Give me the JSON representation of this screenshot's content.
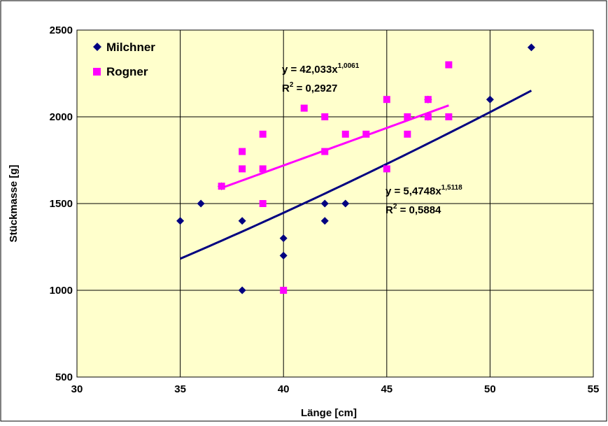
{
  "chart_data": {
    "type": "scatter",
    "xlabel": "Länge [cm]",
    "ylabel": "Stückmasse [g]",
    "xlim": [
      30,
      55
    ],
    "ylim": [
      500,
      2500
    ],
    "xticks": [
      30,
      35,
      40,
      45,
      50,
      55
    ],
    "yticks": [
      500,
      1000,
      1500,
      2000,
      2500
    ],
    "x_tick_labels": [
      "30",
      "35",
      "40",
      "45",
      "50",
      "55"
    ],
    "y_tick_labels": [
      "500",
      "1000",
      "1500",
      "2000",
      "2500"
    ],
    "grid": true,
    "plot_background": "#ffffcc",
    "legend_position": "top-left",
    "series": [
      {
        "name": "Milchner",
        "marker": "diamond",
        "color": "#000080",
        "points": [
          [
            35,
            1400
          ],
          [
            36,
            1500
          ],
          [
            37,
            1600
          ],
          [
            38,
            1000
          ],
          [
            38,
            1400
          ],
          [
            40,
            1200
          ],
          [
            40,
            1300
          ],
          [
            42,
            1400
          ],
          [
            42,
            1500
          ],
          [
            43,
            1500
          ],
          [
            47,
            2000
          ],
          [
            47,
            2100
          ],
          [
            50,
            2100
          ],
          [
            52,
            2400
          ]
        ],
        "trendline": {
          "type": "power",
          "a": 5.4748,
          "b": 1.5118,
          "x_range": [
            35,
            52
          ],
          "equation_prefix": "y = 5,4748x",
          "equation_exponent": "1,5118",
          "r2_prefix": "R",
          "r2_sup": "2",
          "r2_value": " = 0,5884"
        }
      },
      {
        "name": "Rogner",
        "marker": "square",
        "color": "#ff00ff",
        "points": [
          [
            37,
            1600
          ],
          [
            38,
            1700
          ],
          [
            38,
            1800
          ],
          [
            39,
            1500
          ],
          [
            39,
            1700
          ],
          [
            39,
            1900
          ],
          [
            40,
            1000
          ],
          [
            41,
            2050
          ],
          [
            42,
            1800
          ],
          [
            42,
            2000
          ],
          [
            43,
            1900
          ],
          [
            44,
            1900
          ],
          [
            45,
            1700
          ],
          [
            45,
            2100
          ],
          [
            46,
            1900
          ],
          [
            46,
            2000
          ],
          [
            47,
            2000
          ],
          [
            47,
            2100
          ],
          [
            48,
            2000
          ],
          [
            48,
            2300
          ]
        ],
        "trendline": {
          "type": "power",
          "a": 42.033,
          "b": 1.0061,
          "x_range": [
            37,
            48
          ],
          "equation_prefix": "y = 42,033x",
          "equation_exponent": "1,0061",
          "r2_prefix": "R",
          "r2_sup": "2",
          "r2_value": " = 0,2927"
        }
      }
    ]
  }
}
